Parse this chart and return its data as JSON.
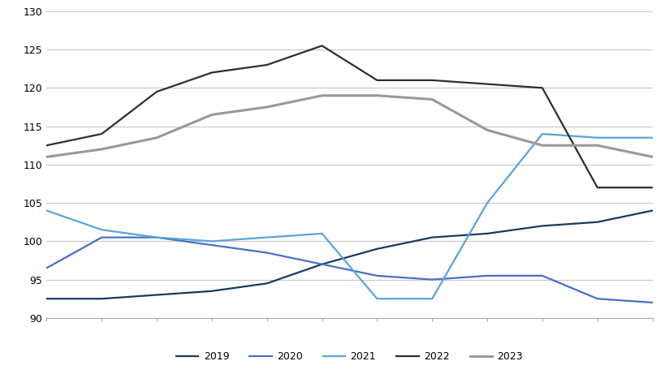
{
  "ylim": [
    90,
    130
  ],
  "yticks": [
    90,
    95,
    100,
    105,
    110,
    115,
    120,
    125,
    130
  ],
  "series": {
    "2019": {
      "color": "#1a3a5c",
      "linewidth": 1.6,
      "values": [
        92.5,
        92.5,
        93.0,
        93.5,
        94.5,
        97.0,
        99.0,
        100.5,
        101.0,
        102.0,
        102.5,
        104.0
      ]
    },
    "2020": {
      "color": "#4472c4",
      "linewidth": 1.6,
      "values": [
        96.5,
        100.5,
        100.5,
        99.5,
        98.5,
        97.0,
        95.5,
        95.0,
        95.5,
        95.5,
        92.5,
        92.0
      ]
    },
    "2021": {
      "color": "#5ba3d9",
      "linewidth": 1.6,
      "values": [
        104.0,
        101.5,
        100.5,
        100.0,
        100.5,
        101.0,
        92.5,
        92.5,
        105.0,
        114.0,
        113.5,
        113.5
      ]
    },
    "2022": {
      "color": "#2e2e2e",
      "linewidth": 1.6,
      "values": [
        112.5,
        114.0,
        119.5,
        122.0,
        123.0,
        125.5,
        121.0,
        121.0,
        120.5,
        120.0,
        107.0,
        107.0
      ]
    },
    "2023": {
      "color": "#999999",
      "linewidth": 2.2,
      "values": [
        111.0,
        112.0,
        113.5,
        116.5,
        117.5,
        119.0,
        119.0,
        118.5,
        114.5,
        112.5,
        112.5,
        111.0
      ]
    }
  },
  "legend_order": [
    "2019",
    "2020",
    "2021",
    "2022",
    "2023"
  ],
  "background_color": "#ffffff",
  "grid_color": "#c8c8c8"
}
